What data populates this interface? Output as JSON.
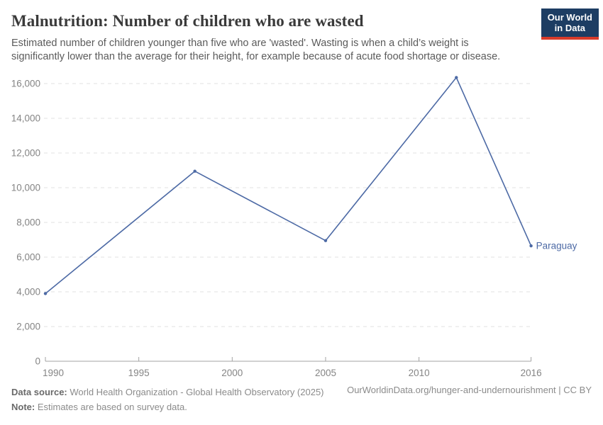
{
  "header": {
    "title": "Malnutrition: Number of children who are wasted",
    "subtitle": "Estimated number of children younger than five who are 'wasted'. Wasting is when a child’s weight is significantly lower than the average for their height, for example because of acute food shortage or disease.",
    "logo": {
      "line1": "Our World",
      "line2": "in Data"
    }
  },
  "chart_data": {
    "type": "line",
    "title": "Malnutrition: Number of children who are wasted",
    "series": [
      {
        "name": "Paraguay",
        "color": "#4d6aa5",
        "points": [
          [
            1990,
            3900
          ],
          [
            1998,
            10950
          ],
          [
            2005,
            6950
          ],
          [
            2012,
            16350
          ],
          [
            2016,
            6650
          ]
        ]
      }
    ],
    "x_ticks": [
      1990,
      1995,
      2000,
      2005,
      2010,
      2016
    ],
    "y_ticks": [
      0,
      2000,
      4000,
      6000,
      8000,
      10000,
      12000,
      14000,
      16000
    ],
    "xlim": [
      1990,
      2016
    ],
    "ylim": [
      0,
      16000
    ],
    "xlabel": "",
    "ylabel": "",
    "grid": "horizontal-dashed",
    "legend_position": "end-of-line-label",
    "end_label": "Paraguay"
  },
  "footer": {
    "data_source_label": "Data source:",
    "data_source_text": " World Health Organization - Global Health Observatory (2025)",
    "note_label": "Note:",
    "note_text": " Estimates are based on survey data.",
    "link_text": "OurWorldinData.org/hunger-and-undernourishment | CC BY"
  },
  "colors": {
    "accent_line": "#4d6aa5",
    "logo_navy": "#1d3d63",
    "logo_red": "#d93b2a",
    "axis_text": "#858585",
    "gridline": "#e0e0e0",
    "axis_line": "#a3a3a3"
  }
}
